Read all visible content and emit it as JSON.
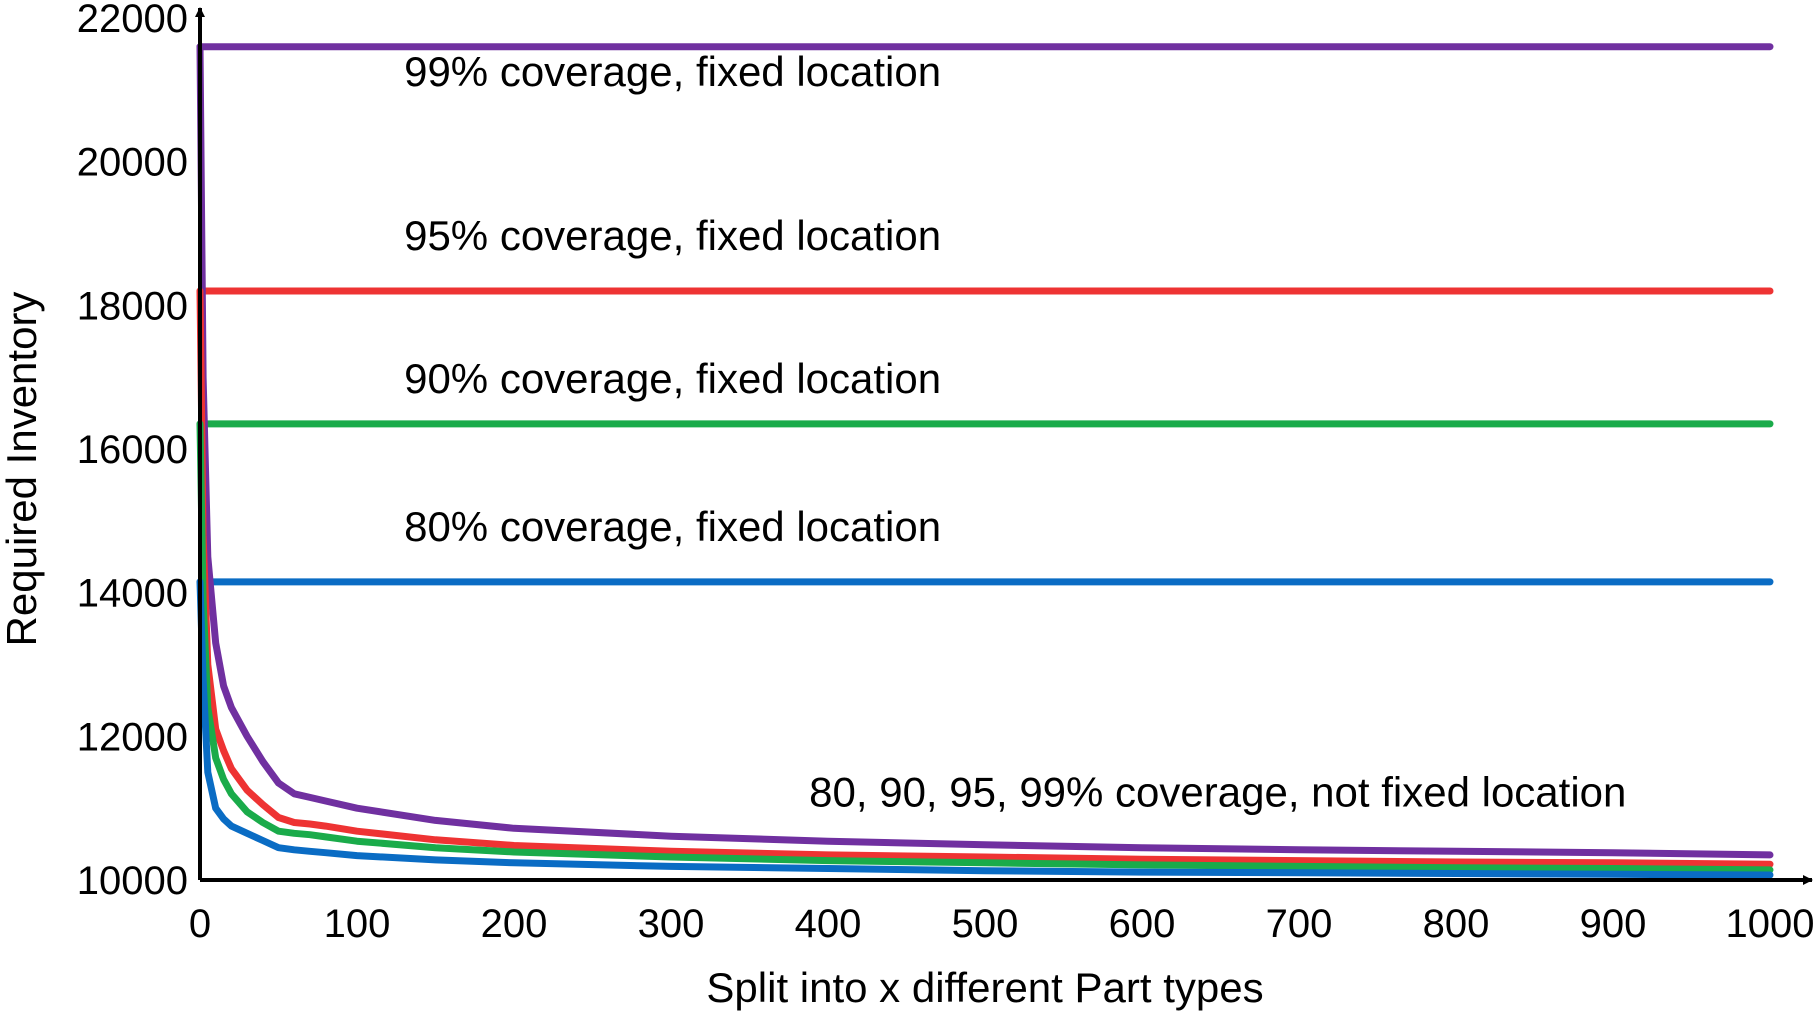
{
  "chart_data": {
    "type": "line",
    "title": "",
    "xlabel": "Split into x different Part types",
    "ylabel": "Required Inventory",
    "xlim": [
      0,
      1000
    ],
    "ylim": [
      10000,
      22000
    ],
    "x_ticks": [
      0,
      100,
      200,
      300,
      400,
      500,
      600,
      700,
      800,
      900,
      1000
    ],
    "y_ticks": [
      10000,
      12000,
      14000,
      16000,
      18000,
      20000,
      22000
    ],
    "grid": false,
    "legend": "none",
    "series": [
      {
        "color": "#7030a0",
        "x": [
          0,
          1000
        ],
        "y": [
          21600,
          21600
        ]
      },
      {
        "color": "#ee3333",
        "x": [
          0,
          1000
        ],
        "y": [
          18200,
          18200
        ]
      },
      {
        "color": "#1aab4a",
        "x": [
          0,
          1000
        ],
        "y": [
          16350,
          16350
        ]
      },
      {
        "color": "#0a6cc4",
        "x": [
          0,
          1000
        ],
        "y": [
          14150,
          14150
        ]
      },
      {
        "color": "#7030a0",
        "x": [
          0,
          2,
          5,
          10,
          15,
          20,
          30,
          40,
          50,
          60,
          70,
          80,
          100,
          150,
          200,
          300,
          400,
          500,
          600,
          700,
          800,
          900,
          1000
        ],
        "y": [
          21600,
          17000,
          14500,
          13300,
          12700,
          12400,
          12000,
          11650,
          11350,
          11200,
          11150,
          11100,
          11000,
          10830,
          10720,
          10610,
          10540,
          10490,
          10450,
          10420,
          10400,
          10380,
          10350
        ]
      },
      {
        "color": "#ee3333",
        "x": [
          0,
          2,
          5,
          10,
          15,
          20,
          30,
          40,
          50,
          60,
          70,
          80,
          100,
          150,
          200,
          300,
          400,
          500,
          600,
          700,
          800,
          900,
          1000
        ],
        "y": [
          18200,
          14800,
          13000,
          12100,
          11800,
          11550,
          11250,
          11050,
          10870,
          10800,
          10780,
          10750,
          10680,
          10560,
          10480,
          10400,
          10350,
          10320,
          10290,
          10270,
          10250,
          10240,
          10220
        ]
      },
      {
        "color": "#1aab4a",
        "x": [
          0,
          2,
          5,
          10,
          15,
          20,
          30,
          40,
          50,
          60,
          70,
          80,
          100,
          150,
          200,
          300,
          400,
          500,
          600,
          700,
          800,
          900,
          1000
        ],
        "y": [
          16350,
          13900,
          12400,
          11700,
          11400,
          11200,
          10950,
          10800,
          10680,
          10650,
          10630,
          10600,
          10540,
          10450,
          10390,
          10320,
          10270,
          10240,
          10210,
          10190,
          10170,
          10160,
          10140
        ]
      },
      {
        "color": "#0a6cc4",
        "x": [
          0,
          2,
          5,
          10,
          15,
          20,
          30,
          40,
          50,
          60,
          70,
          80,
          100,
          150,
          200,
          300,
          400,
          500,
          600,
          700,
          800,
          900,
          1000
        ],
        "y": [
          14150,
          12800,
          11500,
          11000,
          10850,
          10750,
          10650,
          10550,
          10450,
          10420,
          10400,
          10380,
          10340,
          10280,
          10240,
          10190,
          10160,
          10130,
          10110,
          10100,
          10090,
          10080,
          10070
        ]
      }
    ],
    "annotations": [
      {
        "text": "99% coverage, fixed location",
        "x": 130,
        "y": 21050
      },
      {
        "text": "95% coverage, fixed location",
        "x": 130,
        "y": 18770
      },
      {
        "text": "90% coverage, fixed location",
        "x": 130,
        "y": 16780
      },
      {
        "text": "80% coverage, fixed location",
        "x": 130,
        "y": 14720
      },
      {
        "text": "80, 90, 95, 99% coverage, not fixed location",
        "x": 388,
        "y": 11020
      }
    ]
  }
}
